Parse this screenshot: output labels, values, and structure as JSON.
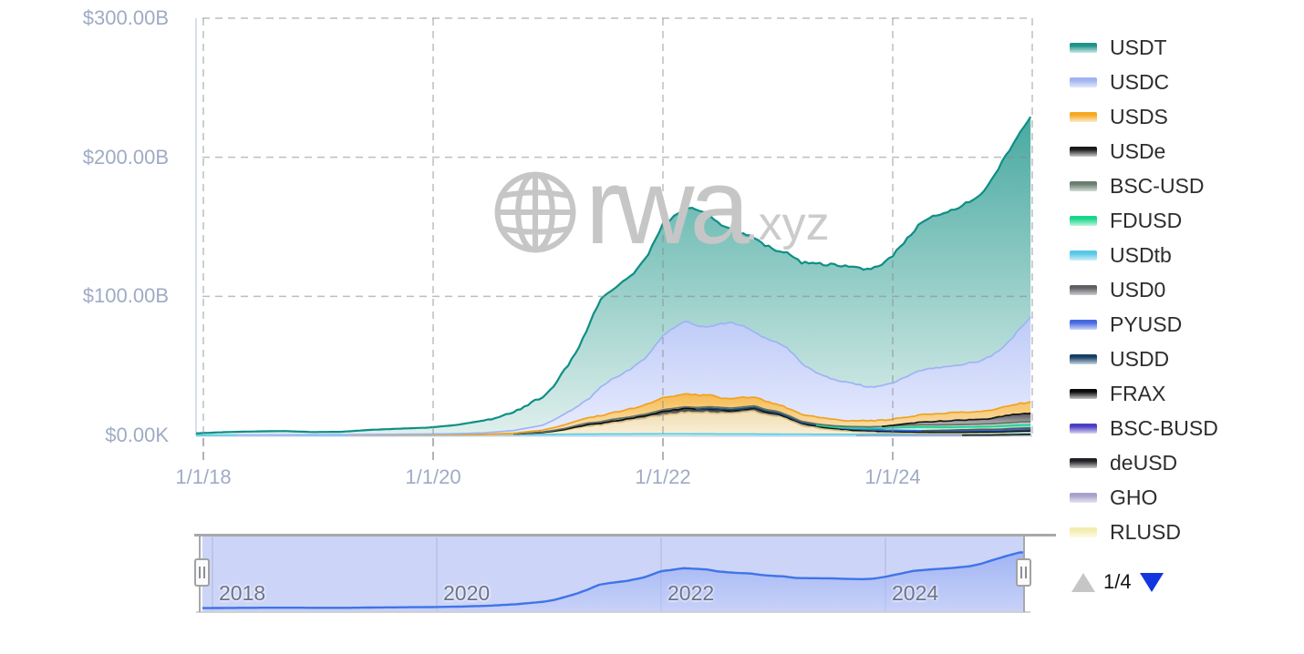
{
  "watermark": {
    "text": "rwa",
    "suffix": ".xyz"
  },
  "pagination": {
    "label": "1/4",
    "up_color": "#c6c6c6",
    "down_color": "#1336e0"
  },
  "y_axis": {
    "labels": [
      {
        "label": "$300.00B",
        "value": 300
      },
      {
        "label": "$200.00B",
        "value": 200
      },
      {
        "label": "$100.00B",
        "value": 100
      },
      {
        "label": "$0.00K",
        "value": 0
      }
    ]
  },
  "x_axis": {
    "labels": [
      {
        "label": "1/1/18",
        "year": 2018
      },
      {
        "label": "1/1/20",
        "year": 2020
      },
      {
        "label": "1/1/22",
        "year": 2022
      },
      {
        "label": "1/1/24",
        "year": 2024
      }
    ]
  },
  "navigator": {
    "labels": [
      {
        "label": "2018",
        "year": 2018
      },
      {
        "label": "2020",
        "year": 2020
      },
      {
        "label": "2022",
        "year": 2022
      },
      {
        "label": "2024",
        "year": 2024
      }
    ],
    "max": 260,
    "line_color": "#3f74e8",
    "fill_top": "#7d9bf0",
    "fill_bottom": "#c2cdf8",
    "bg_color": "#ccd4f8",
    "grid_color": "#b9c0e4",
    "border_color": "#a8a8a8"
  },
  "colors": {
    "grid": "#85888c",
    "axis_line": "#c9d2e8",
    "axis_label": "#9fabc4",
    "watermark": "#c6c6c6"
  },
  "chart_data": {
    "type": "area",
    "stacking": "normal",
    "title": "",
    "ylabel": "",
    "xlabel": "",
    "y_range": [
      0,
      300
    ],
    "x_range": [
      2017.93,
      2025.2
    ],
    "navigator_max": 260,
    "x_years": [
      2017.93,
      2018.2,
      2018.45,
      2018.7,
      2018.95,
      2019.2,
      2019.45,
      2019.7,
      2019.95,
      2020.2,
      2020.45,
      2020.7,
      2020.95,
      2021.05,
      2021.15,
      2021.25,
      2021.35,
      2021.45,
      2021.55,
      2021.7,
      2021.85,
      2022.0,
      2022.1,
      2022.2,
      2022.3,
      2022.4,
      2022.5,
      2022.6,
      2022.7,
      2022.8,
      2022.9,
      2023.0,
      2023.1,
      2023.2,
      2023.35,
      2023.5,
      2023.65,
      2023.8,
      2023.9,
      2024.0,
      2024.1,
      2024.25,
      2024.4,
      2024.5,
      2024.6,
      2024.75,
      2024.85,
      2024.95,
      2025.05,
      2025.12,
      2025.2
    ],
    "stack_order": [
      "RLUSD",
      "GHO",
      "deUSD",
      "USDtb",
      "BSC-BUSD",
      "FRAX",
      "USDD",
      "PYUSD",
      "USD0",
      "FDUSD",
      "BSC-USD",
      "USDe",
      "USDS",
      "USDC",
      "USDT"
    ],
    "series": [
      {
        "name": "USDT",
        "stroke": "#0e8f85",
        "fill_top": "#2f9e94",
        "fill_bottom": "#ddeeeb",
        "swatch_top": "#1d9389",
        "swatch_bottom": "#c9e9e5",
        "values": [
          1.3,
          2.2,
          2.6,
          2.8,
          1.9,
          2.1,
          3.3,
          4.0,
          4.6,
          6.2,
          9.0,
          13.5,
          20,
          24,
          32,
          40,
          52,
          63,
          64,
          66,
          71,
          80,
          80,
          82,
          83,
          81,
          71,
          66,
          66,
          68,
          67,
          66,
          69,
          72,
          79,
          83,
          83.5,
          84.5,
          86,
          92,
          97,
          106,
          110,
          112.5,
          114,
          119,
          125,
          134,
          139,
          141,
          144
        ]
      },
      {
        "name": "USDC",
        "stroke": "#9db4f4",
        "fill_top": "#b6c4f7",
        "fill_bottom": "#e7ebfd",
        "swatch_top": "#9fb3f0",
        "swatch_bottom": "#e2e8fc",
        "values": [
          0,
          0,
          0.05,
          0.15,
          0.3,
          0.25,
          0.35,
          0.45,
          0.5,
          0.7,
          1.1,
          1.9,
          3.5,
          5.5,
          8,
          10.5,
          13,
          20,
          24,
          28,
          34,
          45,
          49,
          52,
          50,
          49,
          53.5,
          55,
          51,
          47,
          45,
          44,
          42.5,
          37,
          31.5,
          28.5,
          26.5,
          24.5,
          24.8,
          25.5,
          28.5,
          32.5,
          33.5,
          33.5,
          34.5,
          36,
          38.5,
          42,
          49,
          55,
          61
        ]
      },
      {
        "name": "USDS",
        "stroke": "#f0a21f",
        "fill_top": "#f6b13a",
        "fill_bottom": "#f8e4bb",
        "swatch_top": "#f5a81f",
        "swatch_bottom": "#fcebc9",
        "values": [
          0,
          0,
          0,
          0,
          0,
          0,
          0.05,
          0.08,
          0.12,
          0.15,
          0.25,
          0.7,
          1.3,
          1.9,
          2.6,
          3.2,
          3.8,
          4.4,
          4.8,
          5.6,
          6.5,
          8.5,
          9,
          9.5,
          9,
          8.5,
          6.8,
          6.6,
          6.9,
          6.3,
          5.8,
          5.3,
          5.1,
          4.9,
          4.7,
          4.5,
          4.3,
          4.3,
          4.4,
          4.7,
          4.9,
          5.1,
          5.3,
          5.5,
          5.6,
          5.8,
          6,
          6.6,
          7.2,
          7.6,
          8
        ]
      },
      {
        "name": "USDe",
        "stroke": "#17171a",
        "fill_top": "#3a3a40",
        "fill_bottom": "#c9c9cc",
        "swatch_top": "#1a1a1a",
        "swatch_bottom": "#cfcfcf",
        "values": [
          0,
          0,
          0,
          0,
          0,
          0,
          0,
          0,
          0,
          0,
          0,
          0,
          0,
          0,
          0,
          0,
          0,
          0,
          0,
          0,
          0,
          0,
          0,
          0,
          0,
          0,
          0,
          0,
          0,
          0,
          0,
          0,
          0,
          0,
          0,
          0,
          0,
          0,
          0,
          0.3,
          1,
          2,
          2.6,
          2.9,
          3.1,
          3.2,
          3.8,
          5,
          5.6,
          5.8,
          6
        ]
      },
      {
        "name": "BSC-USD",
        "stroke": "#5f7568",
        "fill_top": "#7c9082",
        "fill_bottom": "#d6ded8",
        "swatch_top": "#6a7d71",
        "swatch_bottom": "#d3dcd4",
        "values": [
          0,
          0,
          0,
          0,
          0,
          0,
          0,
          0,
          0,
          0,
          0,
          0,
          0.4,
          0.6,
          0.8,
          1,
          1.1,
          1.1,
          1.2,
          1.2,
          1.2,
          1.2,
          1.2,
          1.2,
          1.2,
          1.2,
          1.2,
          1.2,
          1.2,
          1.1,
          1.1,
          1.1,
          1.1,
          1,
          1,
          1,
          1.1,
          1.2,
          1.3,
          1.4,
          1.5,
          1.6,
          1.7,
          1.8,
          1.9,
          2,
          2.1,
          2.2,
          2.3,
          2.35,
          2.4
        ]
      },
      {
        "name": "FDUSD",
        "stroke": "#1bd191",
        "fill_top": "#52dfad",
        "fill_bottom": "#d9f7ea",
        "swatch_top": "#17d689",
        "swatch_bottom": "#c2f4dd",
        "values": [
          0,
          0,
          0,
          0,
          0,
          0,
          0,
          0,
          0,
          0,
          0,
          0,
          0,
          0,
          0,
          0,
          0,
          0,
          0,
          0,
          0,
          0,
          0,
          0,
          0,
          0,
          0,
          0,
          0,
          0,
          0,
          0,
          0,
          0,
          0,
          0.3,
          0.5,
          0.8,
          1.2,
          1.8,
          2.2,
          2.6,
          2.3,
          2.1,
          2,
          1.9,
          2,
          2.1,
          2.1,
          2.2,
          2.2
        ]
      },
      {
        "name": "USDtb",
        "stroke": "#4ecfe4",
        "fill_top": "#7fdff0",
        "fill_bottom": "#dcf6fa",
        "swatch_top": "#56c8e8",
        "swatch_bottom": "#cfeef8",
        "values": [
          0.15,
          0.2,
          0.2,
          0.2,
          0.22,
          0.25,
          0.25,
          0.3,
          0.35,
          0.4,
          0.5,
          0.6,
          0.7,
          0.75,
          0.8,
          0.9,
          0.9,
          0.95,
          1,
          1,
          1.05,
          1.1,
          1.1,
          1.1,
          1.05,
          1.05,
          1,
          1,
          1,
          0.95,
          0.9,
          0.9,
          0.85,
          0.85,
          0.8,
          0.8,
          0.8,
          0.8,
          0.85,
          0.9,
          0.9,
          0.95,
          0.95,
          1,
          1,
          1.05,
          1.1,
          1.2,
          1.4,
          1.45,
          1.5
        ]
      },
      {
        "name": "USD0",
        "stroke": "#58585c",
        "fill_top": "#909095",
        "fill_bottom": "#dededf",
        "swatch_top": "#5f6063",
        "swatch_bottom": "#cdcdcf",
        "values": [
          0,
          0,
          0,
          0,
          0,
          0,
          0,
          0,
          0,
          0,
          0,
          0,
          0,
          0,
          0,
          0,
          0,
          0,
          0,
          0,
          0,
          0,
          0,
          0,
          0,
          0,
          0,
          0,
          0,
          0,
          0,
          0,
          0,
          0,
          0,
          0,
          0,
          0,
          0,
          0,
          0,
          0,
          0.2,
          0.3,
          0.4,
          0.5,
          0.55,
          0.6,
          0.6,
          0.6,
          0.6
        ]
      },
      {
        "name": "PYUSD",
        "stroke": "#3c63e6",
        "fill_top": "#6f8dee",
        "fill_bottom": "#dbe2fb",
        "swatch_top": "#4468e0",
        "swatch_bottom": "#ccd6f6",
        "values": [
          0,
          0,
          0,
          0,
          0,
          0,
          0,
          0,
          0,
          0,
          0,
          0,
          0,
          0,
          0,
          0,
          0,
          0,
          0,
          0,
          0,
          0,
          0,
          0,
          0,
          0,
          0,
          0,
          0,
          0,
          0,
          0,
          0,
          0,
          0,
          0,
          0.1,
          0.15,
          0.2,
          0.25,
          0.3,
          0.35,
          0.4,
          0.5,
          0.6,
          0.7,
          0.6,
          0.6,
          0.7,
          0.75,
          0.8
        ]
      },
      {
        "name": "USDD",
        "stroke": "#194a6e",
        "fill_top": "#2e6e94",
        "fill_bottom": "#cfdfe9",
        "swatch_top": "#173f66",
        "swatch_bottom": "#c6d6e2",
        "values": [
          0,
          0,
          0,
          0,
          0,
          0,
          0,
          0,
          0,
          0,
          0,
          0,
          0,
          0,
          0,
          0,
          0,
          0,
          0,
          0,
          0,
          0,
          0,
          0,
          0,
          0.3,
          0.6,
          0.7,
          0.7,
          0.7,
          0.7,
          0.7,
          0.7,
          0.7,
          0.7,
          0.7,
          0.7,
          0.7,
          0.7,
          0.7,
          0.7,
          0.7,
          0.7,
          0.7,
          0.7,
          0.7,
          0.7,
          0.7,
          0.7,
          0.7,
          0.7
        ]
      },
      {
        "name": "FRAX",
        "stroke": "#0a0a0a",
        "fill_top": "#2d2d2d",
        "fill_bottom": "#bdbdbd",
        "swatch_top": "#0b0b0b",
        "swatch_bottom": "#c4c4c4",
        "values": [
          0,
          0,
          0,
          0,
          0,
          0,
          0,
          0,
          0,
          0,
          0,
          0,
          0.15,
          0.3,
          0.5,
          0.8,
          1,
          1.1,
          1.2,
          1.4,
          1.6,
          2.6,
          2.7,
          2.8,
          2.7,
          2.6,
          2.3,
          2.2,
          2.1,
          2,
          1.8,
          1.6,
          1.4,
          1.2,
          1.1,
          1,
          0.9,
          0.85,
          0.8,
          0.75,
          0.75,
          0.7,
          0.7,
          0.7,
          0.7,
          0.7,
          0.7,
          0.68,
          0.66,
          0.65,
          0.65
        ]
      },
      {
        "name": "BSC-BUSD",
        "stroke": "#dcc08a",
        "fill_top": "#eed9a9",
        "fill_bottom": "#f8eed4",
        "swatch_top": "#4a3fc4",
        "swatch_bottom": "#d9d5f2",
        "values": [
          0,
          0,
          0,
          0,
          0,
          0,
          0,
          0,
          0,
          0,
          0,
          0.3,
          1.2,
          2,
          3,
          4.5,
          6,
          6.5,
          8,
          9.5,
          11.5,
          13.5,
          14.5,
          15.5,
          15,
          15.5,
          15,
          14.5,
          15.5,
          16.5,
          14,
          13,
          10,
          6.5,
          4.5,
          3,
          2.2,
          1.6,
          1.3,
          1,
          0.8,
          0.6,
          0.5,
          0.45,
          0.45,
          0.4,
          0.4,
          0.4,
          0.4,
          0.4,
          0.4
        ]
      },
      {
        "name": "deUSD",
        "stroke": "#202024",
        "fill_top": "#46464a",
        "fill_bottom": "#cccccd",
        "swatch_top": "#212126",
        "swatch_bottom": "#cbcbcc",
        "values": [
          0,
          0,
          0,
          0,
          0,
          0,
          0,
          0,
          0,
          0,
          0,
          0,
          0,
          0,
          0,
          0,
          0,
          0,
          0,
          0,
          0,
          0,
          0,
          0,
          0,
          0,
          0,
          0,
          0,
          0,
          0,
          0,
          0,
          0,
          0,
          0,
          0,
          0,
          0,
          0,
          0,
          0,
          0,
          0,
          0,
          0.1,
          0.12,
          0.15,
          0.18,
          0.2,
          0.2
        ]
      },
      {
        "name": "GHO",
        "stroke": "#a79ecb",
        "fill_top": "#beb6da",
        "fill_bottom": "#ece9f5",
        "swatch_top": "#aaa0cc",
        "swatch_bottom": "#e8e5f3",
        "values": [
          0,
          0,
          0,
          0,
          0,
          0,
          0,
          0,
          0,
          0,
          0,
          0,
          0,
          0,
          0,
          0,
          0,
          0,
          0,
          0,
          0,
          0,
          0,
          0,
          0,
          0,
          0,
          0,
          0,
          0,
          0,
          0,
          0,
          0,
          0,
          0,
          0,
          0.05,
          0.06,
          0.08,
          0.09,
          0.1,
          0.11,
          0.12,
          0.13,
          0.14,
          0.15,
          0.16,
          0.17,
          0.18,
          0.2
        ]
      },
      {
        "name": "RLUSD",
        "stroke": "#f2e9ac",
        "fill_top": "#f7f1c6",
        "fill_bottom": "#fdfbeb",
        "swatch_top": "#f4ecb0",
        "swatch_bottom": "#fdfae8",
        "values": [
          0,
          0,
          0,
          0,
          0,
          0,
          0,
          0,
          0,
          0,
          0,
          0,
          0,
          0,
          0,
          0,
          0,
          0,
          0,
          0,
          0,
          0,
          0,
          0,
          0,
          0,
          0,
          0,
          0,
          0,
          0,
          0,
          0,
          0,
          0,
          0,
          0,
          0,
          0,
          0,
          0,
          0,
          0,
          0,
          0,
          0,
          0,
          0.05,
          0.15,
          0.25,
          0.3
        ]
      }
    ]
  }
}
